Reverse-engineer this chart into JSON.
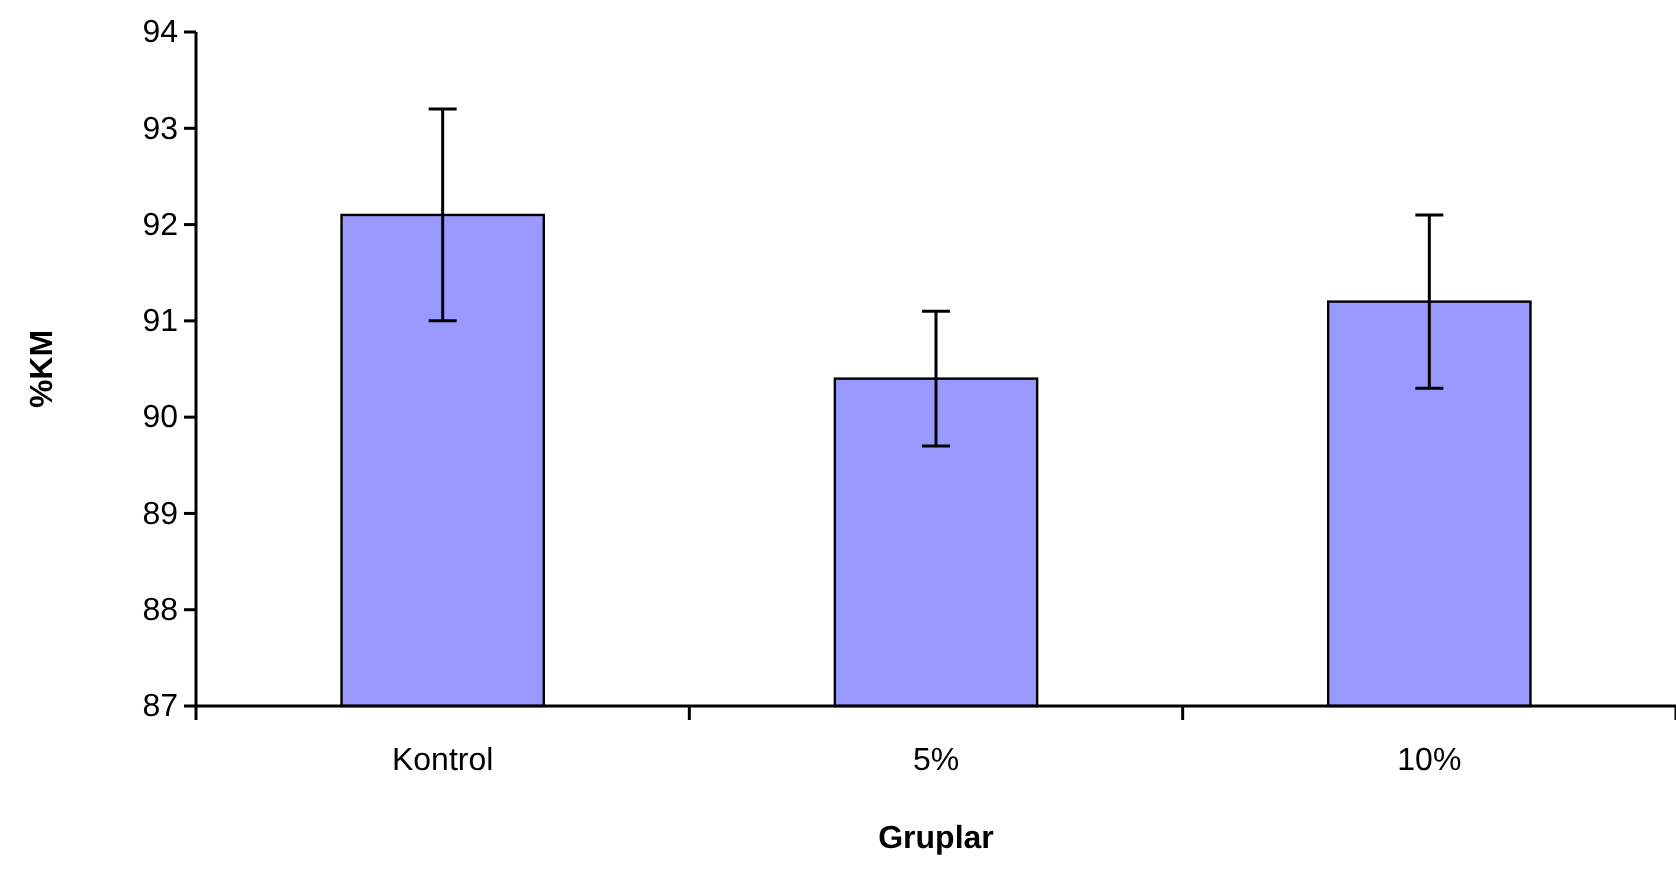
{
  "chart_data": {
    "type": "bar",
    "xlabel": "Gruplar",
    "ylabel": "%KM",
    "categories": [
      "Kontrol",
      "5%",
      "10%"
    ],
    "values": [
      92.1,
      90.4,
      91.2
    ],
    "errors": [
      1.1,
      0.7,
      0.9
    ],
    "color": "#9999ff",
    "ylim": [
      87,
      94
    ],
    "yticks": [
      87,
      88,
      89,
      90,
      91,
      92,
      93,
      94
    ],
    "grid": false
  }
}
